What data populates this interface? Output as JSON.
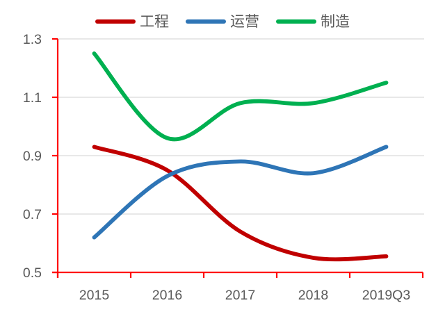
{
  "chart_data": {
    "type": "line",
    "title": "",
    "xlabel": "",
    "ylabel": "",
    "categories": [
      "2015",
      "2016",
      "2017",
      "2018",
      "2019Q3"
    ],
    "series": [
      {
        "name": "工程",
        "color": "#C00000",
        "values": [
          0.93,
          0.85,
          0.64,
          0.55,
          0.555
        ]
      },
      {
        "name": "运营",
        "color": "#2E75B6",
        "values": [
          0.62,
          0.83,
          0.88,
          0.84,
          0.93
        ]
      },
      {
        "name": "制造",
        "color": "#00B050",
        "values": [
          1.25,
          0.96,
          1.08,
          1.08,
          1.15
        ]
      }
    ],
    "ylim": [
      0.5,
      1.3
    ],
    "ytick_labels": [
      "1.3",
      "1.1",
      "0.9",
      "0.7",
      "0.5"
    ],
    "grid": "horizontal",
    "smooth": true,
    "legend_position": "top",
    "colors": {
      "axis": "#FF0000",
      "gridline": "#D9D9D9",
      "tick_text": "#595959",
      "background": "#FFFFFF"
    }
  }
}
